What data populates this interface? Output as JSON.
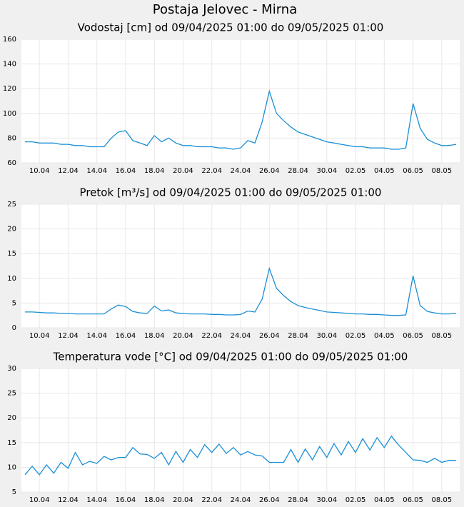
{
  "title": "Postaja Jelovec - Mirna",
  "chart_data": [
    {
      "type": "line",
      "title": "Vodostaj [cm] od 09/04/2025 01:00 do 09/05/2025 01:00",
      "categories": [
        null,
        null,
        "10.04",
        null,
        null,
        null,
        "12.04",
        null,
        null,
        null,
        "14.04",
        null,
        null,
        null,
        "16.04",
        null,
        null,
        null,
        "18.04",
        null,
        null,
        null,
        "20.04",
        null,
        null,
        null,
        "22.04",
        null,
        null,
        null,
        "24.04",
        null,
        null,
        null,
        "26.04",
        null,
        null,
        null,
        "28.04",
        null,
        null,
        null,
        "30.04",
        null,
        null,
        null,
        "02.05",
        null,
        null,
        null,
        "04.05",
        null,
        null,
        null,
        "06.05",
        null,
        null,
        null,
        "08.05",
        null,
        null
      ],
      "series": [
        {
          "color": "#1a8fd6",
          "values": [
            77,
            77,
            76,
            76,
            76,
            75,
            75,
            74,
            74,
            73,
            73,
            73,
            80,
            85,
            86,
            78,
            76,
            74,
            82,
            77,
            80,
            76,
            74,
            74,
            73,
            73,
            73,
            72,
            72,
            71,
            72,
            78,
            76,
            93,
            118,
            100,
            94,
            89,
            85,
            83,
            81,
            79,
            77,
            76,
            75,
            74,
            73,
            73,
            72,
            72,
            72,
            71,
            71,
            72,
            108,
            88,
            79,
            76,
            74,
            74,
            75
          ]
        }
      ],
      "ylim": [
        60,
        160
      ],
      "yticks": [
        60,
        80,
        100,
        120,
        140,
        160
      ],
      "grid": true
    },
    {
      "type": "line",
      "title": "Pretok [m³/s] od 09/04/2025 01:00 do 09/05/2025 01:00",
      "categories": [
        null,
        null,
        "10.04",
        null,
        null,
        null,
        "12.04",
        null,
        null,
        null,
        "14.04",
        null,
        null,
        null,
        "16.04",
        null,
        null,
        null,
        "18.04",
        null,
        null,
        null,
        "20.04",
        null,
        null,
        null,
        "22.04",
        null,
        null,
        null,
        "24.04",
        null,
        null,
        null,
        "26.04",
        null,
        null,
        null,
        "28.04",
        null,
        null,
        null,
        "30.04",
        null,
        null,
        null,
        "02.05",
        null,
        null,
        null,
        "04.05",
        null,
        null,
        null,
        "06.05",
        null,
        null,
        null,
        "08.05",
        null,
        null
      ],
      "series": [
        {
          "color": "#1a8fd6",
          "values": [
            3.2,
            3.2,
            3.1,
            3.0,
            3.0,
            2.9,
            2.9,
            2.8,
            2.8,
            2.8,
            2.8,
            2.8,
            3.8,
            4.6,
            4.3,
            3.3,
            3.0,
            2.9,
            4.4,
            3.4,
            3.6,
            3.0,
            2.9,
            2.8,
            2.8,
            2.8,
            2.7,
            2.7,
            2.6,
            2.6,
            2.7,
            3.4,
            3.2,
            5.8,
            12.0,
            8.0,
            6.5,
            5.3,
            4.5,
            4.1,
            3.8,
            3.5,
            3.2,
            3.1,
            3.0,
            2.9,
            2.8,
            2.8,
            2.7,
            2.7,
            2.6,
            2.5,
            2.5,
            2.6,
            10.5,
            4.5,
            3.3,
            3.0,
            2.8,
            2.8,
            2.9
          ]
        }
      ],
      "ylim": [
        0,
        25
      ],
      "yticks": [
        0,
        5,
        10,
        15,
        20,
        25
      ],
      "grid": true
    },
    {
      "type": "line",
      "title": "Temperatura vode [°C] od 09/04/2025 01:00 do 09/05/2025 01:00",
      "categories": [
        null,
        null,
        "10.04",
        null,
        null,
        null,
        "12.04",
        null,
        null,
        null,
        "14.04",
        null,
        null,
        null,
        "16.04",
        null,
        null,
        null,
        "18.04",
        null,
        null,
        null,
        "20.04",
        null,
        null,
        null,
        "22.04",
        null,
        null,
        null,
        "24.04",
        null,
        null,
        null,
        "26.04",
        null,
        null,
        null,
        "28.04",
        null,
        null,
        null,
        "30.04",
        null,
        null,
        null,
        "02.05",
        null,
        null,
        null,
        "04.05",
        null,
        null,
        null,
        "06.05",
        null,
        null,
        null,
        "08.05",
        null,
        null
      ],
      "series": [
        {
          "color": "#1a8fd6",
          "values": [
            8.5,
            10.2,
            8.5,
            10.5,
            8.8,
            11.0,
            9.8,
            13.0,
            10.5,
            11.2,
            10.8,
            12.2,
            11.5,
            12.0,
            12.0,
            14.0,
            12.7,
            12.6,
            11.8,
            13.0,
            10.5,
            13.2,
            11.0,
            13.6,
            12.0,
            14.6,
            13.0,
            14.7,
            12.8,
            14.0,
            12.5,
            13.2,
            12.5,
            12.3,
            11.0,
            11.0,
            11.0,
            13.6,
            11.0,
            13.7,
            11.5,
            14.2,
            12.0,
            14.8,
            12.5,
            15.2,
            13.0,
            15.8,
            13.5,
            16.0,
            14.0,
            16.3,
            14.5,
            13.0,
            11.5,
            11.4,
            11.0,
            11.8,
            11.0,
            11.4,
            11.4
          ]
        }
      ],
      "ylim": [
        5,
        30
      ],
      "yticks": [
        5,
        10,
        15,
        20,
        25,
        30
      ],
      "grid": true
    }
  ]
}
